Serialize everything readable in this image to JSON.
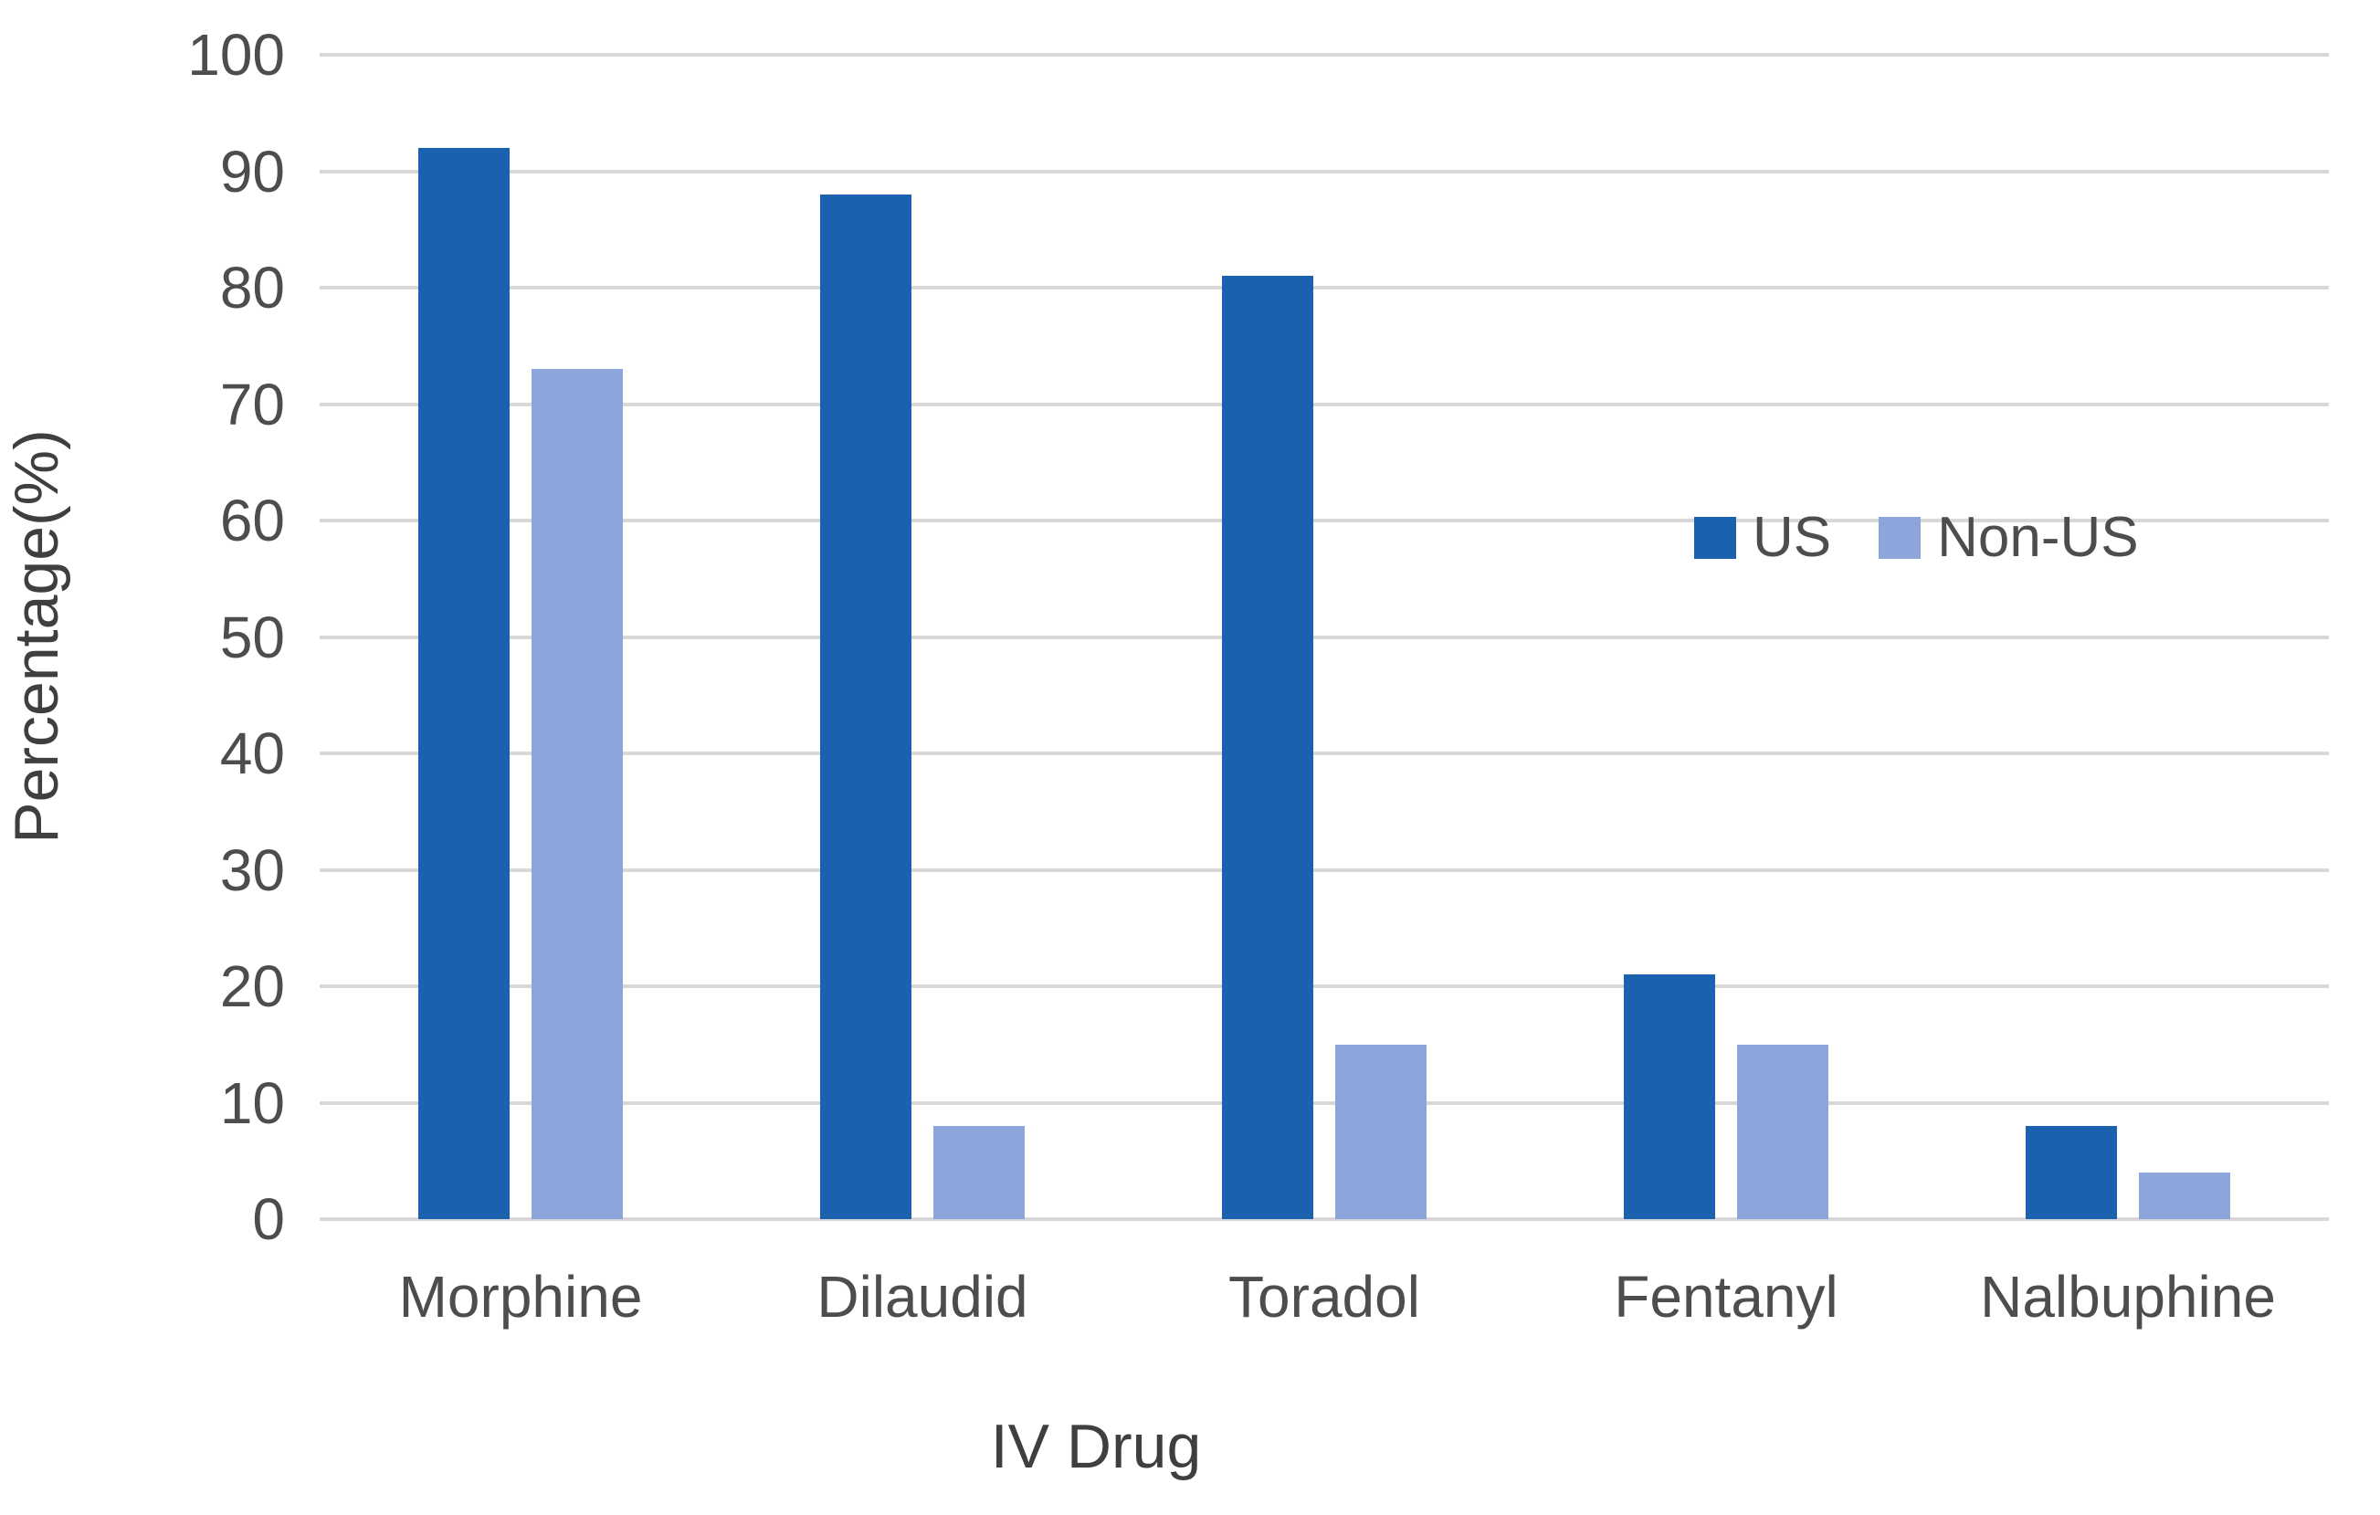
{
  "chart_data": {
    "type": "bar",
    "title": "",
    "categories": [
      "Morphine",
      "Dilaudid",
      "Toradol",
      "Fentanyl",
      "Nalbuphine"
    ],
    "series": [
      {
        "name": "US",
        "color": "#1a62b0",
        "values": [
          92,
          88,
          81,
          21,
          8
        ]
      },
      {
        "name": "Non-US",
        "color": "#8ca5db",
        "values": [
          73,
          8,
          15,
          15,
          4
        ]
      }
    ],
    "xlabel": "IV Drug",
    "ylabel": "Percentage(%)",
    "ylim": [
      0,
      100
    ],
    "yticks": [
      0,
      10,
      20,
      30,
      40,
      50,
      60,
      70,
      80,
      90,
      100
    ],
    "grid": true,
    "gridline_color": "#d8d8d8",
    "text_color": "#4d4d4d",
    "legend_position": "middle-right",
    "legend_labels": [
      "US",
      "Non-US"
    ]
  }
}
